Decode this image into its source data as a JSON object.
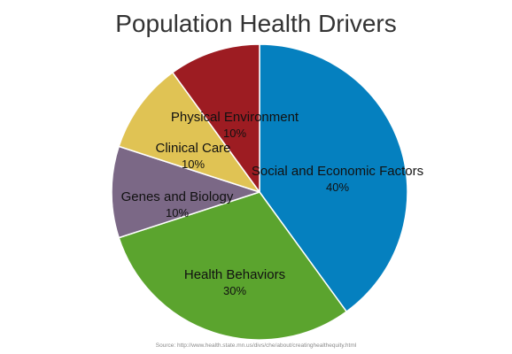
{
  "chart_data": {
    "type": "pie",
    "title": "Population Health Drivers",
    "source": "Source: http://www.health.state.mn.us/divs/che/about/creatinghealthequity.html",
    "slices": [
      {
        "label": "Social and Economic Factors",
        "value": 40,
        "value_label": "40%",
        "color": "#0580BF"
      },
      {
        "label": "Health Behaviors",
        "value": 30,
        "value_label": "30%",
        "color": "#5BA42E"
      },
      {
        "label": "Genes and Biology",
        "value": 10,
        "value_label": "10%",
        "color": "#7B6886"
      },
      {
        "label": "Clinical Care",
        "value": 10,
        "value_label": "10%",
        "color": "#E0C354"
      },
      {
        "label": "Physical Environment",
        "value": 10,
        "value_label": "10%",
        "color": "#9D1C22"
      }
    ],
    "start": "12 o'clock",
    "direction": "clockwise"
  }
}
